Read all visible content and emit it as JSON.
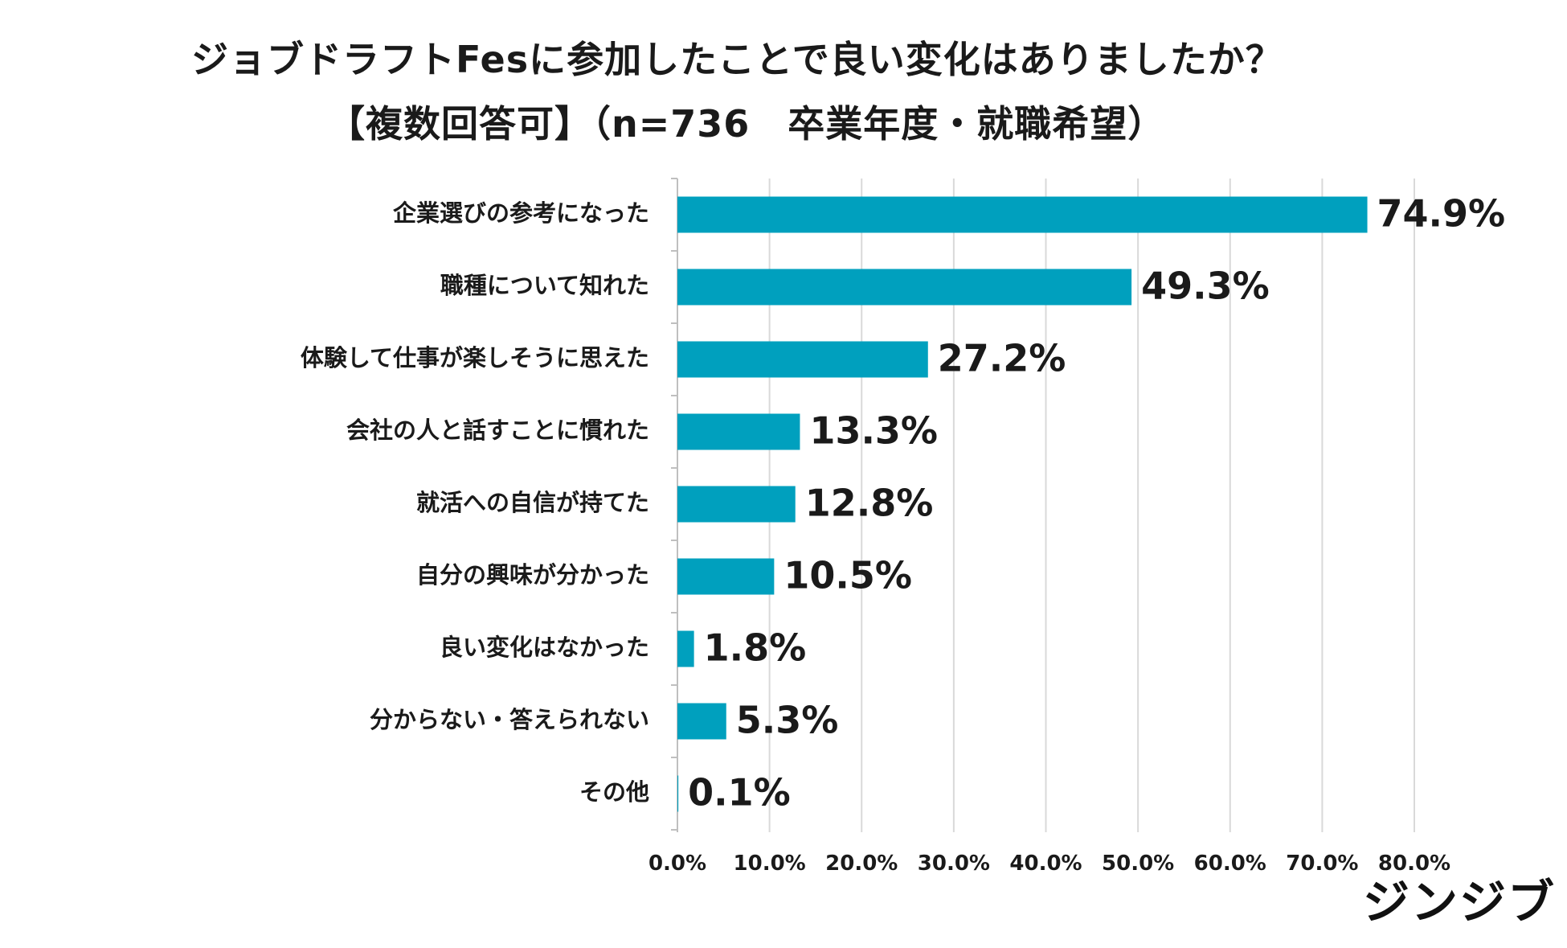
{
  "chart_data": {
    "type": "bar",
    "orientation": "horizontal",
    "title_line1": "ジョブドラフトFesに参加したことで良い変化はありましたか？",
    "title_line2": "【複数回答可】（n=736　卒業年度・就職希望）",
    "categories": [
      "企業選びの参考になった",
      "職種について知れた",
      "体験して仕事が楽しそうに思えた",
      "会社の人と話すことに慣れた",
      "就活への自信が持てた",
      "自分の興味が分かった",
      "良い変化はなかった",
      "分からない・答えられない",
      "その他"
    ],
    "values": [
      74.9,
      49.3,
      27.2,
      13.3,
      12.8,
      10.5,
      1.8,
      5.3,
      0.1
    ],
    "value_labels": [
      "74.9%",
      "49.3%",
      "27.2%",
      "13.3%",
      "12.8%",
      "10.5%",
      "1.8%",
      "5.3%",
      "0.1%"
    ],
    "xlim": [
      0,
      80
    ],
    "x_ticks": [
      0,
      10,
      20,
      30,
      40,
      50,
      60,
      70,
      80
    ],
    "x_tick_labels": [
      "0.0%",
      "10.0%",
      "20.0%",
      "30.0%",
      "40.0%",
      "50.0%",
      "60.0%",
      "70.0%",
      "80.0%"
    ],
    "grid": true,
    "bar_color": "#00A0BE"
  },
  "brand": "ジンジブ"
}
